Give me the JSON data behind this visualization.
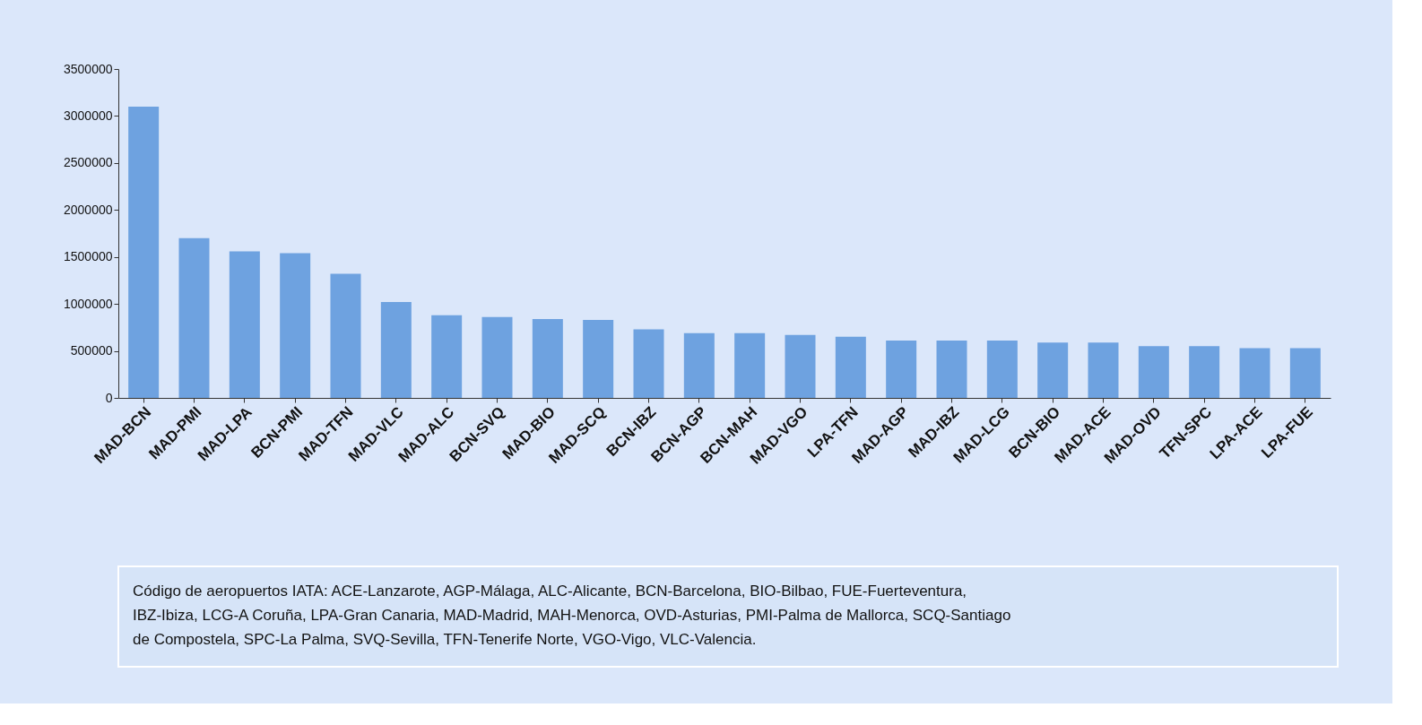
{
  "chart_data": {
    "type": "bar",
    "categories": [
      "MAD-BCN",
      "MAD-PMI",
      "MAD-LPA",
      "BCN-PMI",
      "MAD-TFN",
      "MAD-VLC",
      "MAD-ALC",
      "BCN-SVQ",
      "MAD-BIO",
      "MAD-SCQ",
      "BCN-IBZ",
      "BCN-AGP",
      "BCN-MAH",
      "MAD-VGO",
      "LPA-TFN",
      "MAD-AGP",
      "MAD-IBZ",
      "MAD-LCG",
      "BCN-BIO",
      "MAD-ACE",
      "MAD-OVD",
      "TFN-SPC",
      "LPA-ACE",
      "LPA-FUE"
    ],
    "values": [
      3100000,
      1700000,
      1560000,
      1540000,
      1320000,
      1020000,
      880000,
      860000,
      840000,
      830000,
      730000,
      690000,
      690000,
      670000,
      650000,
      610000,
      610000,
      610000,
      590000,
      590000,
      550000,
      550000,
      530000,
      530000
    ],
    "color": "#6ea2e0",
    "ylim": [
      0,
      3500000
    ],
    "yticks": [
      0,
      500000,
      1000000,
      1500000,
      2000000,
      2500000,
      3000000,
      3500000
    ],
    "grid": false,
    "annotations": [
      "Código de aeropuertos IATA: ACE-Lanzarote, AGP-Málaga, ALC-Alicante, BCN-Barcelona, BIO-Bilbao, FUE-Fuerteventura, IBZ-Ibiza, LCG-A Coruña, LPA-Gran Canaria, MAD-Madrid, MAH-Menorca, OVD-Asturias, PMI-Palma de Mallorca, SCQ-Santiago de Compostela, SPC-La Palma, SVQ-Sevilla, TFN-Tenerife Norte, VGO-Vigo, VLC-Valencia."
    ]
  }
}
